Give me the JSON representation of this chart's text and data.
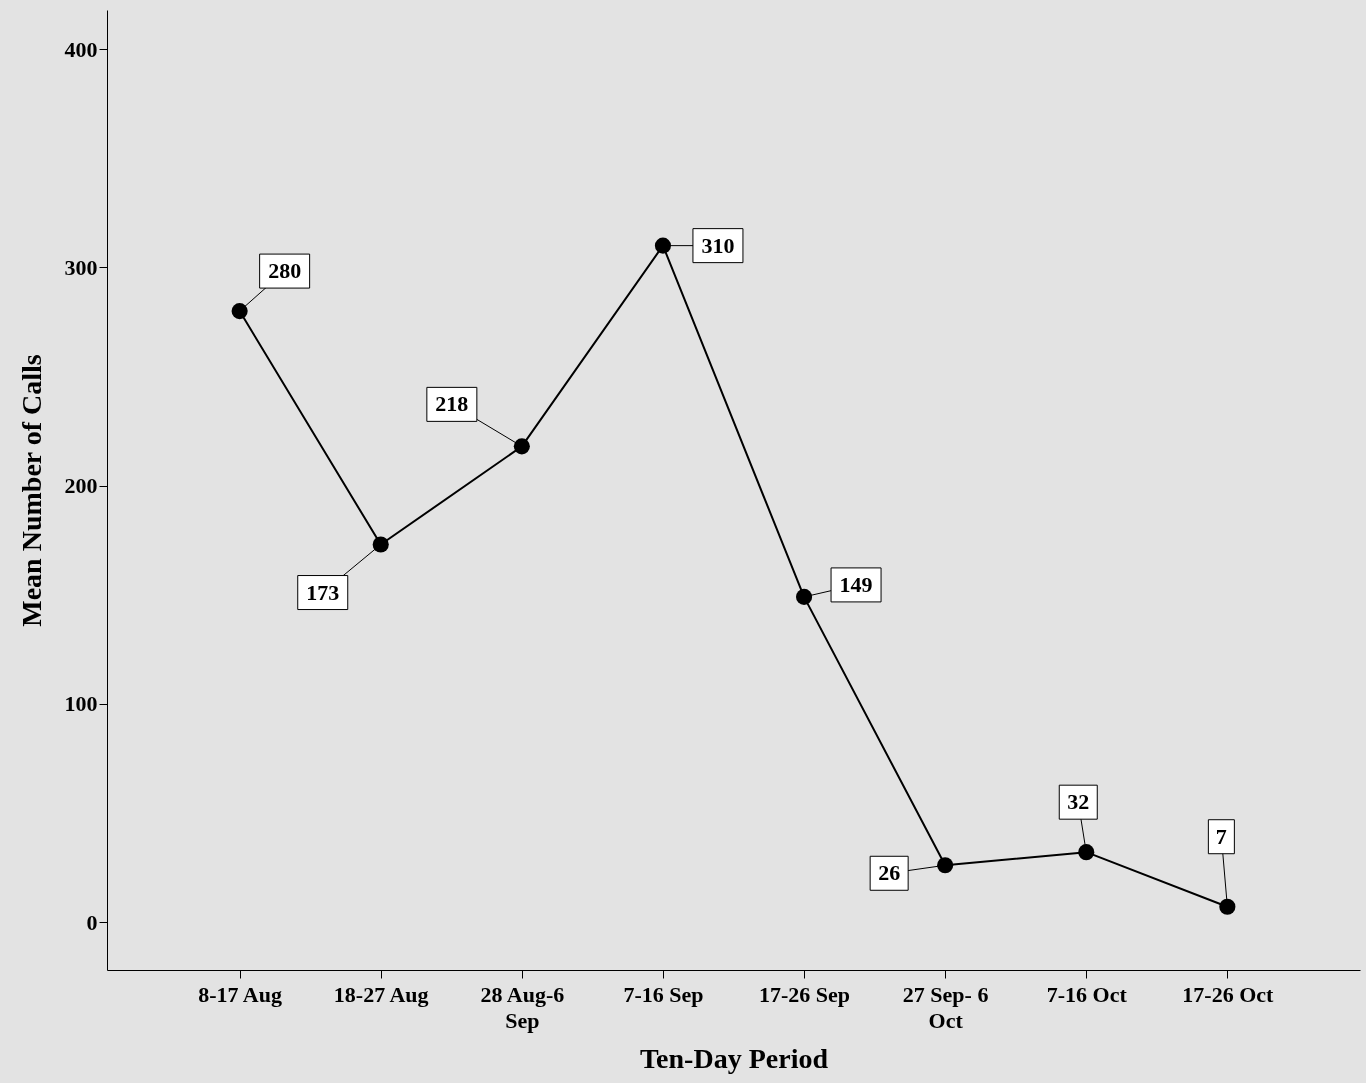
{
  "chart_data": {
    "type": "line",
    "xlabel": "Ten-Day Period",
    "ylabel": "Mean Number of Calls",
    "categories": [
      "8-17 Aug",
      "18-27 Aug",
      "28 Aug-6 Sep",
      "7-16 Sep",
      "17-26 Sep",
      "27 Sep- 6 Oct",
      "7-16 Oct",
      "17-26 Oct"
    ],
    "series": [
      {
        "color": "#000000",
        "values": [
          280,
          173,
          218,
          310,
          149,
          26,
          32,
          7
        ]
      }
    ],
    "ylim": [
      -22,
      418
    ],
    "yticks": [
      0,
      100,
      200,
      300,
      400
    ],
    "grid": false,
    "marker": "circle",
    "line_style": "solid",
    "data_labels": true
  }
}
